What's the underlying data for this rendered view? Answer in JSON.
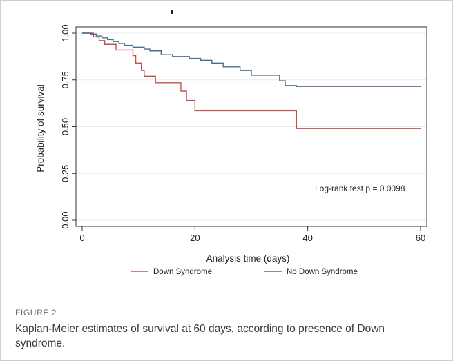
{
  "figure": {
    "label": "FIGURE 2",
    "caption": "Kaplan-Meier estimates of survival at 60 days, according to presence of Down syndrome."
  },
  "chart_data": {
    "type": "line",
    "step": true,
    "xlabel": "Analysis time (days)",
    "ylabel": "Probability of survival",
    "xlim": [
      0,
      60
    ],
    "ylim": [
      0,
      1
    ],
    "x_ticks": [
      0,
      20,
      40,
      60
    ],
    "y_ticks": [
      0,
      0.25,
      0.5,
      0.75,
      1
    ],
    "x_tick_labels": [
      "0",
      "20",
      "40",
      "60"
    ],
    "y_tick_labels": [
      "0.00",
      "0.25",
      "0.50",
      "0.75",
      "1.00"
    ],
    "grid": true,
    "legend_position": "bottom",
    "annotation": "Log-rank test p = 0.0098",
    "series": [
      {
        "name": "Down Syndrome",
        "color": "#c0504d",
        "points": [
          [
            0,
            1
          ],
          [
            2,
            0.98
          ],
          [
            3,
            0.96
          ],
          [
            4,
            0.94
          ],
          [
            6,
            0.91
          ],
          [
            9,
            0.88
          ],
          [
            9.5,
            0.84
          ],
          [
            10.5,
            0.8
          ],
          [
            11,
            0.77
          ],
          [
            13,
            0.735
          ],
          [
            17.5,
            0.69
          ],
          [
            18.5,
            0.64
          ],
          [
            20,
            0.585
          ],
          [
            38,
            0.49
          ],
          [
            60,
            0.49
          ]
        ]
      },
      {
        "name": "No Down Syndrome",
        "color": "#4f6d8f",
        "points": [
          [
            0,
            1
          ],
          [
            1.5,
            0.995
          ],
          [
            2.5,
            0.985
          ],
          [
            3.5,
            0.975
          ],
          [
            4.5,
            0.965
          ],
          [
            5.5,
            0.955
          ],
          [
            6.5,
            0.945
          ],
          [
            7.5,
            0.935
          ],
          [
            9,
            0.925
          ],
          [
            11,
            0.915
          ],
          [
            12,
            0.905
          ],
          [
            14,
            0.885
          ],
          [
            16,
            0.875
          ],
          [
            19,
            0.865
          ],
          [
            21,
            0.855
          ],
          [
            23,
            0.84
          ],
          [
            25,
            0.82
          ],
          [
            28,
            0.8
          ],
          [
            30,
            0.775
          ],
          [
            35,
            0.745
          ],
          [
            36,
            0.72
          ],
          [
            38,
            0.715
          ],
          [
            60,
            0.715
          ]
        ]
      }
    ]
  }
}
